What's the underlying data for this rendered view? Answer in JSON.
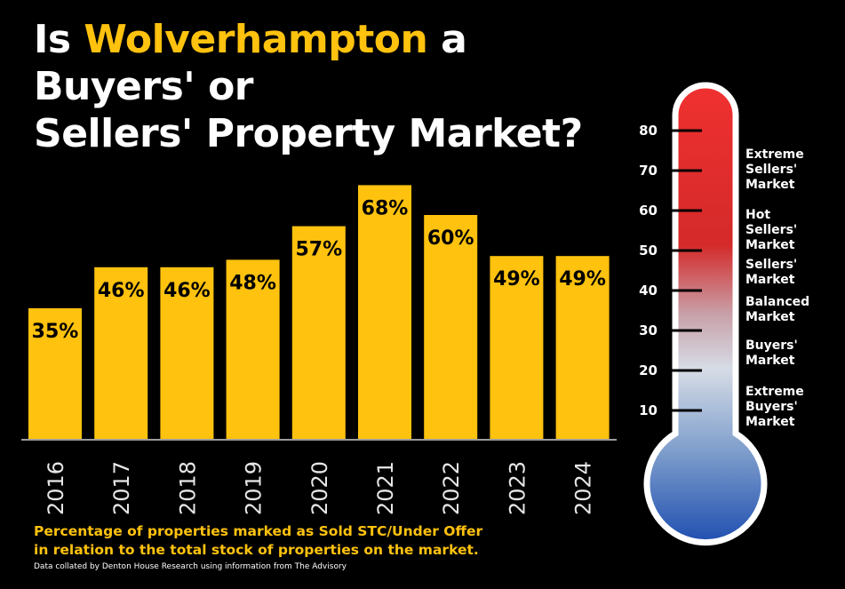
{
  "title": {
    "part1": "Is ",
    "highlight": "Wolverhampton",
    "part2": " a Buyers' or",
    "line2": "Sellers' Property Market?"
  },
  "colors": {
    "bar": "#FFC20E",
    "highlight": "#FFC20E",
    "background": "#000000"
  },
  "chart_data": {
    "type": "bar",
    "categories": [
      "2016",
      "2017",
      "2018",
      "2019",
      "2020",
      "2021",
      "2022",
      "2023",
      "2024"
    ],
    "values": [
      35,
      46,
      46,
      48,
      57,
      68,
      60,
      49,
      49
    ],
    "data_labels": [
      "35%",
      "46%",
      "46%",
      "48%",
      "57%",
      "68%",
      "60%",
      "49%",
      "49%"
    ],
    "ylim": [
      0,
      80
    ],
    "grid": false,
    "xlabel": "",
    "ylabel": ""
  },
  "thermometer": {
    "ticks": [
      "80",
      "70",
      "60",
      "50",
      "40",
      "30",
      "20",
      "10"
    ],
    "tick_values": [
      80,
      70,
      60,
      50,
      40,
      30,
      20,
      10
    ],
    "labels": [
      {
        "lines": [
          "Extreme",
          "Sellers'",
          "Market"
        ]
      },
      {
        "lines": [
          "Hot",
          "Sellers'",
          "Market"
        ]
      },
      {
        "lines": [
          "Sellers'",
          "Market"
        ]
      },
      {
        "lines": [
          "Balanced",
          "Market"
        ]
      },
      {
        "lines": [
          "Buyers'",
          "Market"
        ]
      },
      {
        "lines": [
          "Extreme",
          "Buyers'",
          "Market"
        ]
      }
    ]
  },
  "caption": {
    "line1": "Percentage of properties marked as Sold STC/Under Offer",
    "line2": "in relation to the total stock of properties on the market."
  },
  "source": "Data collated by Denton House Research using information from The Advisory"
}
